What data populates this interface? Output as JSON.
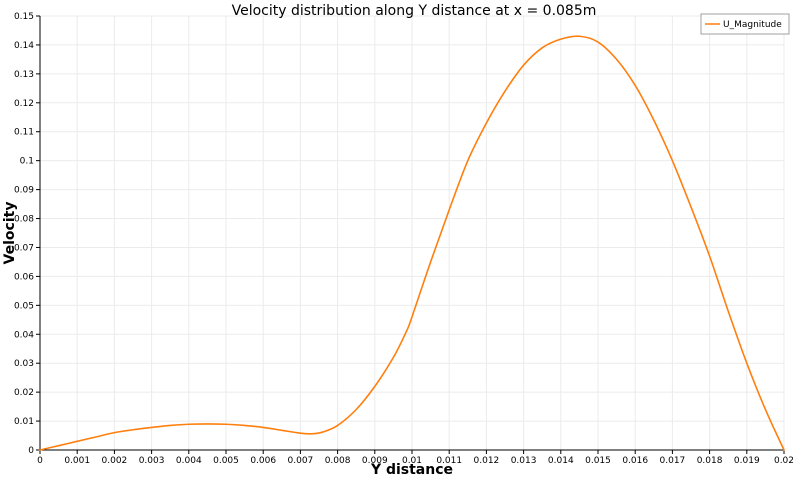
{
  "chart_data": {
    "type": "line",
    "title": "Velocity distribution along Y distance at x = 0.085m",
    "xlabel": "Y distance",
    "ylabel": "Velocity",
    "xlim": [
      0,
      0.02
    ],
    "ylim": [
      0,
      0.15
    ],
    "x_ticks": [
      0,
      0.001,
      0.002,
      0.003,
      0.004,
      0.005,
      0.006,
      0.007,
      0.008,
      0.009,
      0.01,
      0.011,
      0.012,
      0.013,
      0.014,
      0.015,
      0.016,
      0.017,
      0.018,
      0.019,
      0.02
    ],
    "x_tick_labels": [
      "0",
      "0.001",
      "0.002",
      "0.003",
      "0.004",
      "0.005",
      "0.006",
      "0.007",
      "0.008",
      "0.009",
      "0.01",
      "0.011",
      "0.012",
      "0.013",
      "0.014",
      "0.015",
      "0.016",
      "0.017",
      "0.018",
      "0.019",
      "0.02"
    ],
    "y_ticks": [
      0,
      0.01,
      0.02,
      0.03,
      0.04,
      0.05,
      0.06,
      0.07,
      0.08,
      0.09,
      0.1,
      0.11,
      0.12,
      0.13,
      0.14,
      0.15
    ],
    "y_tick_labels": [
      "0",
      "0.01",
      "0.02",
      "0.03",
      "0.04",
      "0.05",
      "0.06",
      "0.07",
      "0.08",
      "0.09",
      "0.1",
      "0.11",
      "0.12",
      "0.13",
      "0.14",
      "0.15"
    ],
    "grid": true,
    "legend_position": "top-right",
    "series": [
      {
        "name": "U_Magnitude",
        "color": "#ff7f0e",
        "x": [
          0,
          0.0005,
          0.001,
          0.0015,
          0.002,
          0.0025,
          0.003,
          0.0035,
          0.004,
          0.0045,
          0.005,
          0.0055,
          0.006,
          0.0065,
          0.007,
          0.0073,
          0.0076,
          0.008,
          0.0085,
          0.009,
          0.0095,
          0.00985,
          0.01,
          0.0105,
          0.011,
          0.0115,
          0.012,
          0.0125,
          0.013,
          0.0135,
          0.014,
          0.0145,
          0.015,
          0.0155,
          0.016,
          0.0165,
          0.017,
          0.0175,
          0.018,
          0.0185,
          0.019,
          0.0195,
          0.02
        ],
        "y": [
          0,
          0.0015,
          0.003,
          0.0045,
          0.006,
          0.007,
          0.0078,
          0.0085,
          0.0089,
          0.009,
          0.0089,
          0.0085,
          0.0078,
          0.0068,
          0.0058,
          0.0056,
          0.0062,
          0.0085,
          0.014,
          0.022,
          0.032,
          0.041,
          0.046,
          0.065,
          0.083,
          0.1,
          0.113,
          0.124,
          0.133,
          0.139,
          0.142,
          0.143,
          0.141,
          0.135,
          0.126,
          0.114,
          0.1,
          0.084,
          0.067,
          0.048,
          0.03,
          0.014,
          0
        ]
      }
    ]
  }
}
